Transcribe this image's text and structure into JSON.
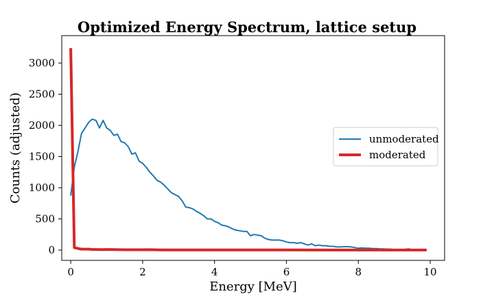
{
  "chart_data": {
    "type": "line",
    "title": "Optimized Energy Spectrum, lattice setup",
    "xlabel": "Energy [MeV]",
    "ylabel": "Counts (adjusted)",
    "xlim": [
      -0.25,
      10.4
    ],
    "ylim": [
      -165,
      3440
    ],
    "xticks": [
      0,
      2,
      4,
      6,
      8,
      10
    ],
    "yticks": [
      0,
      500,
      1000,
      1500,
      2000,
      2500,
      3000
    ],
    "grid": false,
    "legend_position": "center-right",
    "series": [
      {
        "name": "unmoderated",
        "color": "#1f77b4",
        "points": [
          [
            0.0,
            870
          ],
          [
            0.1,
            1330
          ],
          [
            0.2,
            1580
          ],
          [
            0.3,
            1870
          ],
          [
            0.4,
            1960
          ],
          [
            0.5,
            2050
          ],
          [
            0.6,
            2100
          ],
          [
            0.7,
            2080
          ],
          [
            0.8,
            1960
          ],
          [
            0.9,
            2080
          ],
          [
            1.0,
            1960
          ],
          [
            1.1,
            1920
          ],
          [
            1.2,
            1840
          ],
          [
            1.3,
            1860
          ],
          [
            1.4,
            1740
          ],
          [
            1.5,
            1720
          ],
          [
            1.6,
            1660
          ],
          [
            1.7,
            1540
          ],
          [
            1.8,
            1560
          ],
          [
            1.9,
            1430
          ],
          [
            2.0,
            1390
          ],
          [
            2.1,
            1330
          ],
          [
            2.2,
            1250
          ],
          [
            2.3,
            1190
          ],
          [
            2.4,
            1120
          ],
          [
            2.5,
            1090
          ],
          [
            2.6,
            1040
          ],
          [
            2.7,
            980
          ],
          [
            2.8,
            920
          ],
          [
            2.9,
            890
          ],
          [
            3.0,
            860
          ],
          [
            3.1,
            790
          ],
          [
            3.2,
            690
          ],
          [
            3.3,
            680
          ],
          [
            3.4,
            660
          ],
          [
            3.5,
            620
          ],
          [
            3.6,
            590
          ],
          [
            3.7,
            550
          ],
          [
            3.8,
            500
          ],
          [
            3.9,
            500
          ],
          [
            4.0,
            460
          ],
          [
            4.1,
            440
          ],
          [
            4.2,
            400
          ],
          [
            4.3,
            390
          ],
          [
            4.4,
            370
          ],
          [
            4.5,
            340
          ],
          [
            4.6,
            320
          ],
          [
            4.7,
            310
          ],
          [
            4.8,
            300
          ],
          [
            4.9,
            300
          ],
          [
            5.0,
            230
          ],
          [
            5.1,
            250
          ],
          [
            5.2,
            240
          ],
          [
            5.3,
            230
          ],
          [
            5.4,
            190
          ],
          [
            5.5,
            170
          ],
          [
            5.6,
            160
          ],
          [
            5.7,
            160
          ],
          [
            5.8,
            160
          ],
          [
            5.9,
            150
          ],
          [
            6.0,
            130
          ],
          [
            6.1,
            120
          ],
          [
            6.2,
            120
          ],
          [
            6.3,
            110
          ],
          [
            6.4,
            120
          ],
          [
            6.5,
            100
          ],
          [
            6.6,
            80
          ],
          [
            6.7,
            100
          ],
          [
            6.8,
            70
          ],
          [
            6.9,
            80
          ],
          [
            7.0,
            70
          ],
          [
            7.1,
            70
          ],
          [
            7.2,
            60
          ],
          [
            7.3,
            60
          ],
          [
            7.4,
            50
          ],
          [
            7.5,
            50
          ],
          [
            7.6,
            55
          ],
          [
            7.7,
            55
          ],
          [
            7.8,
            50
          ],
          [
            7.9,
            40
          ],
          [
            8.0,
            30
          ],
          [
            8.1,
            35
          ],
          [
            8.2,
            30
          ],
          [
            8.3,
            30
          ],
          [
            8.4,
            25
          ],
          [
            8.5,
            25
          ],
          [
            8.6,
            20
          ],
          [
            8.7,
            20
          ],
          [
            8.8,
            15
          ],
          [
            8.9,
            15
          ],
          [
            9.0,
            10
          ],
          [
            9.1,
            10
          ],
          [
            9.2,
            10
          ],
          [
            9.3,
            12
          ],
          [
            9.4,
            20
          ],
          [
            9.5,
            5
          ],
          [
            9.6,
            8
          ],
          [
            9.7,
            5
          ],
          [
            9.8,
            5
          ],
          [
            9.9,
            5
          ]
        ]
      },
      {
        "name": "moderated",
        "color": "#d62728",
        "points": [
          [
            0.0,
            3240
          ],
          [
            0.1,
            40
          ],
          [
            0.2,
            25
          ],
          [
            0.3,
            15
          ],
          [
            0.4,
            15
          ],
          [
            0.5,
            15
          ],
          [
            0.6,
            10
          ],
          [
            0.7,
            10
          ],
          [
            0.8,
            8
          ],
          [
            0.9,
            8
          ],
          [
            1.0,
            10
          ],
          [
            1.2,
            8
          ],
          [
            1.5,
            5
          ],
          [
            2.0,
            5
          ],
          [
            2.2,
            6
          ],
          [
            2.5,
            3
          ],
          [
            3.0,
            3
          ],
          [
            4.0,
            2
          ],
          [
            5.0,
            2
          ],
          [
            6.0,
            2
          ],
          [
            7.0,
            1
          ],
          [
            8.0,
            1
          ],
          [
            9.0,
            1
          ],
          [
            9.9,
            1
          ]
        ]
      }
    ]
  }
}
